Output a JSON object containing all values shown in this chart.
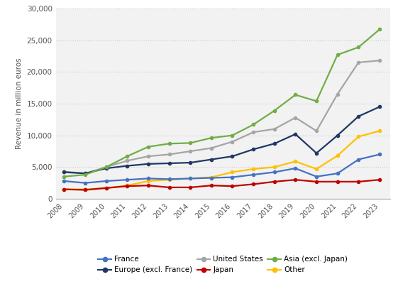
{
  "years": [
    2008,
    2009,
    2010,
    2011,
    2012,
    2013,
    2014,
    2015,
    2016,
    2017,
    2018,
    2019,
    2020,
    2021,
    2022,
    2023
  ],
  "series": {
    "France": [
      2800,
      2500,
      2800,
      3000,
      3200,
      3100,
      3200,
      3300,
      3400,
      3800,
      4200,
      4800,
      3500,
      4000,
      6200,
      7000
    ],
    "Europe (excl. France)": [
      4200,
      4000,
      4800,
      5200,
      5500,
      5600,
      5700,
      6200,
      6700,
      7800,
      8700,
      10200,
      7200,
      10000,
      13000,
      14500
    ],
    "United States": [
      4300,
      4000,
      5000,
      6000,
      6700,
      7000,
      7500,
      8000,
      9000,
      10500,
      11000,
      12800,
      10700,
      16500,
      21500,
      21800
    ],
    "Japan": [
      1500,
      1400,
      1700,
      2000,
      2100,
      1800,
      1800,
      2100,
      2000,
      2300,
      2700,
      3000,
      2700,
      2700,
      2700,
      3000
    ],
    "Asia (excl. Japan)": [
      3500,
      3800,
      5000,
      6700,
      8200,
      8700,
      8800,
      9600,
      10000,
      11700,
      13900,
      16400,
      15400,
      22700,
      23900,
      26700
    ],
    "Other": [
      1500,
      1500,
      1700,
      2100,
      2800,
      3000,
      3200,
      3400,
      4200,
      4700,
      5000,
      5900,
      4700,
      6800,
      9800,
      10700
    ]
  },
  "colors": {
    "France": "#4472C4",
    "Europe (excl. France)": "#1F3864",
    "United States": "#A5A5A5",
    "Japan": "#C00000",
    "Asia (excl. Japan)": "#70AD47",
    "Other": "#FFC000"
  },
  "ylabel": "Revenue in million euros",
  "ylim": [
    0,
    30000
  ],
  "yticks": [
    0,
    5000,
    10000,
    15000,
    20000,
    25000,
    30000
  ],
  "plot_bg": "#f2f2f2",
  "fig_bg": "#ffffff",
  "legend_col1": [
    "France",
    "Japan"
  ],
  "legend_col2": [
    "Europe (excl. France)",
    "Asia (excl. Japan)"
  ],
  "legend_col3": [
    "United States",
    "Other"
  ]
}
